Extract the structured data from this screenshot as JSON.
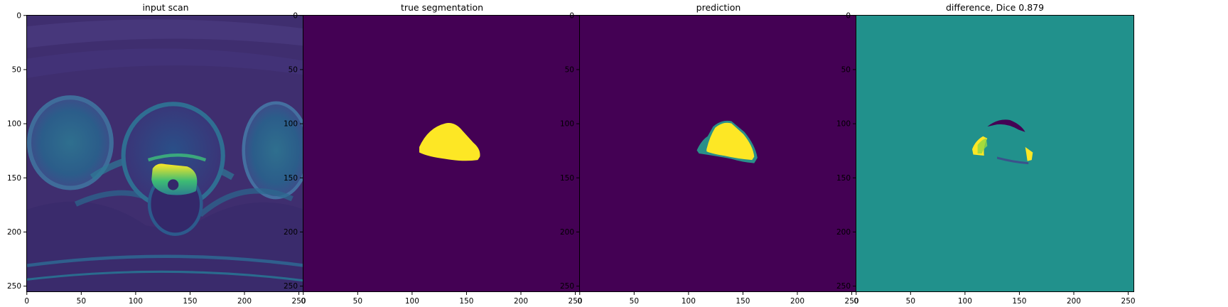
{
  "figure": {
    "ticks": [
      "0",
      "50",
      "100",
      "150",
      "200",
      "250"
    ],
    "colors": {
      "viridis_dark": "#440154",
      "viridis_mid": "#21918c",
      "viridis_yellow": "#fde725",
      "scan_bg": "#3f2e6f"
    },
    "panels": [
      {
        "title": "input scan"
      },
      {
        "title": "true segmentation"
      },
      {
        "title": "prediction"
      },
      {
        "title": "difference, Dice 0.879"
      }
    ]
  }
}
